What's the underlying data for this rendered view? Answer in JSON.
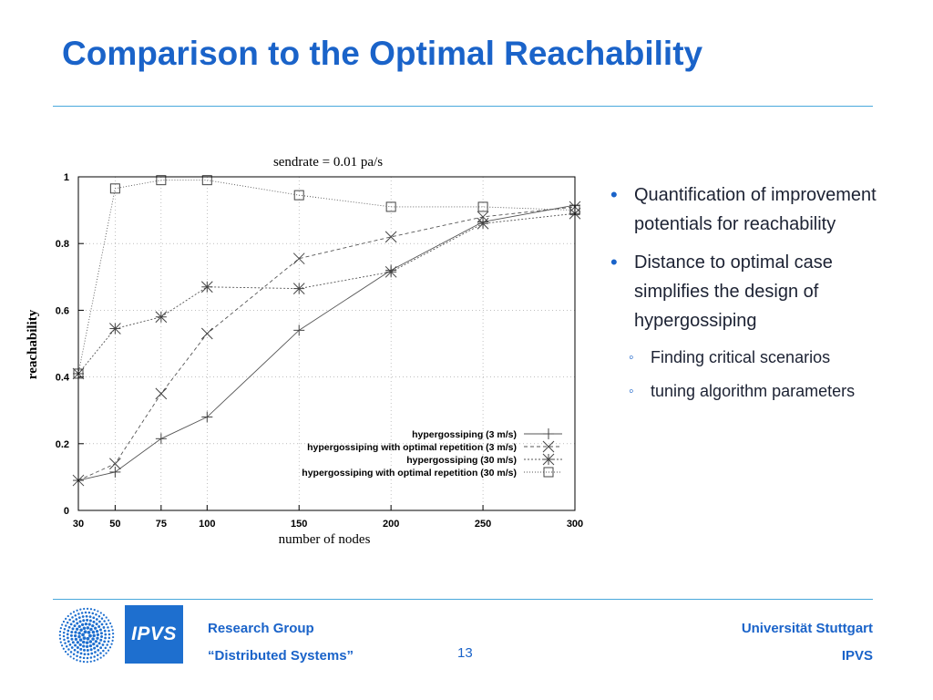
{
  "slide": {
    "title": "Comparison to the Optimal Reachability",
    "bullets": [
      {
        "text": "Quantification of improvement potentials for reachability"
      },
      {
        "text": "Distance to optimal case simplifies the design of hypergossiping"
      }
    ],
    "sub_bullets": [
      {
        "text": "Finding critical scenarios"
      },
      {
        "text": "tuning algorithm parameters"
      }
    ]
  },
  "footer": {
    "logo_text": "IPVS",
    "group_line1": "Research Group",
    "group_line2": "“Distributed Systems”",
    "page_number": "13",
    "university": "Universität Stuttgart",
    "institute": "IPVS"
  },
  "colors": {
    "title": "#1a63c9",
    "rule": "#4aa8dc",
    "logo_box": "#1e6fcf",
    "footer_text": "#1a63c9"
  },
  "chart_data": {
    "type": "line",
    "title": "sendrate = 0.01 pa/s",
    "xlabel": "number of nodes",
    "ylabel": "reachability",
    "xlim": [
      30,
      300
    ],
    "ylim": [
      0,
      1
    ],
    "x_ticks": [
      30,
      50,
      75,
      100,
      150,
      200,
      250,
      300
    ],
    "y_ticks": [
      0,
      0.2,
      0.4,
      0.6,
      0.8,
      1
    ],
    "y_tick_labels": [
      "0",
      "0.2",
      "0.4",
      "0.6",
      "0.8",
      "1"
    ],
    "grid": true,
    "legend_position": "bottom-right",
    "x": [
      30,
      50,
      75,
      100,
      150,
      200,
      250,
      300
    ],
    "series": [
      {
        "name": "hypergossiping (3 m/s)",
        "marker": "plus",
        "dash": "none",
        "values": [
          0.09,
          0.115,
          0.215,
          0.28,
          0.54,
          0.72,
          0.865,
          0.915
        ]
      },
      {
        "name": "hypergossiping with optimal repetition (3 m/s)",
        "marker": "cross",
        "dash": "4,3",
        "values": [
          0.09,
          0.14,
          0.35,
          0.53,
          0.755,
          0.82,
          0.88,
          0.91
        ]
      },
      {
        "name": "hypergossiping (30 m/s)",
        "marker": "star",
        "dash": "2,2",
        "values": [
          0.41,
          0.545,
          0.58,
          0.67,
          0.665,
          0.715,
          0.86,
          0.89
        ]
      },
      {
        "name": "hypergossiping with optimal repetition (30 m/s)",
        "marker": "square",
        "dash": "1,2",
        "values": [
          0.41,
          0.965,
          0.99,
          0.99,
          0.945,
          0.91,
          0.91,
          0.9
        ]
      }
    ]
  }
}
